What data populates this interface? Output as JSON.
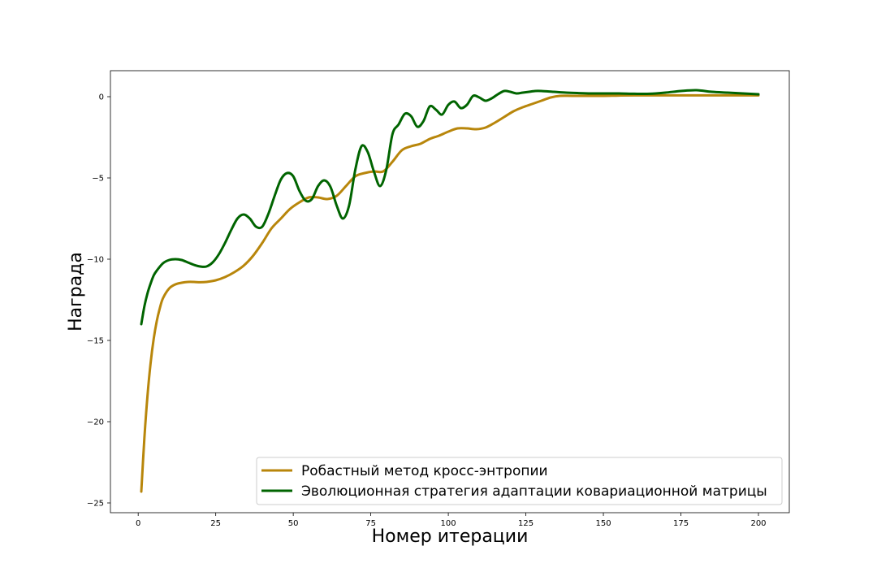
{
  "chart_data": {
    "type": "line",
    "title": "",
    "xlabel": "Номер итерации",
    "ylabel": "Награда",
    "xlim": [
      -8.95,
      209.95
    ],
    "ylim": [
      -25.6,
      1.6
    ],
    "xticks": [
      0,
      25,
      50,
      75,
      100,
      125,
      150,
      175,
      200
    ],
    "yticks": [
      0,
      -5,
      -10,
      -15,
      -20,
      -25
    ],
    "ytick_labels": [
      "0",
      "−5",
      "−10",
      "−15",
      "−20",
      "−25"
    ],
    "grid": false,
    "legend_position": "lower-right",
    "series": [
      {
        "name": "Робастный метод кросс-энтропии",
        "color": "#b8860b",
        "x": [
          1,
          2,
          3,
          4,
          5,
          6,
          7,
          8,
          10,
          12,
          14,
          16,
          18,
          20,
          22,
          25,
          28,
          31,
          34,
          37,
          40,
          43,
          46,
          49,
          52,
          55,
          58,
          61,
          64,
          67,
          70,
          73,
          76,
          79,
          82,
          85,
          88,
          91,
          94,
          97,
          100,
          103,
          106,
          109,
          112,
          115,
          118,
          121,
          124,
          127,
          130,
          133,
          136,
          140,
          145,
          150,
          155,
          160,
          170,
          180,
          190,
          200
        ],
        "values": [
          -24.3,
          -21.0,
          -18.4,
          -16.4,
          -14.9,
          -13.8,
          -13.0,
          -12.4,
          -11.8,
          -11.55,
          -11.45,
          -11.4,
          -11.4,
          -11.42,
          -11.4,
          -11.3,
          -11.1,
          -10.8,
          -10.4,
          -9.8,
          -9.0,
          -8.1,
          -7.5,
          -6.9,
          -6.5,
          -6.2,
          -6.2,
          -6.3,
          -6.1,
          -5.5,
          -4.9,
          -4.7,
          -4.6,
          -4.6,
          -4.0,
          -3.3,
          -3.05,
          -2.9,
          -2.6,
          -2.4,
          -2.15,
          -1.95,
          -1.95,
          -2.0,
          -1.9,
          -1.6,
          -1.25,
          -0.9,
          -0.65,
          -0.45,
          -0.25,
          -0.05,
          0.05,
          0.05,
          0.05,
          0.05,
          0.07,
          0.08,
          0.08,
          0.08,
          0.08,
          0.08
        ]
      },
      {
        "name": "Эволюционная стратегия адаптации ковариационной матрицы",
        "color": "#006400",
        "x": [
          1,
          2,
          3,
          4,
          5,
          6,
          8,
          10,
          12,
          14,
          16,
          18,
          20,
          22,
          24,
          26,
          28,
          30,
          32,
          34,
          36,
          38,
          40,
          42,
          44,
          46,
          48,
          50,
          52,
          54,
          56,
          58,
          60,
          62,
          64,
          66,
          68,
          70,
          72,
          74,
          76,
          78,
          80,
          82,
          84,
          86,
          88,
          90,
          92,
          94,
          96,
          98,
          100,
          102,
          104,
          106,
          108,
          110,
          112,
          114,
          116,
          118,
          120,
          122,
          124,
          126,
          128,
          130,
          134,
          138,
          142,
          146,
          150,
          155,
          160,
          165,
          170,
          175,
          180,
          185,
          190,
          195,
          200
        ],
        "values": [
          -14.0,
          -12.9,
          -12.1,
          -11.5,
          -11.0,
          -10.7,
          -10.25,
          -10.05,
          -10.0,
          -10.05,
          -10.2,
          -10.35,
          -10.45,
          -10.45,
          -10.2,
          -9.7,
          -9.0,
          -8.2,
          -7.5,
          -7.25,
          -7.5,
          -8.0,
          -8.0,
          -7.2,
          -6.1,
          -5.1,
          -4.7,
          -4.9,
          -5.8,
          -6.4,
          -6.3,
          -5.5,
          -5.15,
          -5.55,
          -6.7,
          -7.5,
          -6.7,
          -4.5,
          -3.05,
          -3.4,
          -4.6,
          -5.5,
          -4.5,
          -2.3,
          -1.7,
          -1.05,
          -1.2,
          -1.85,
          -1.5,
          -0.6,
          -0.8,
          -1.1,
          -0.5,
          -0.3,
          -0.7,
          -0.5,
          0.05,
          -0.05,
          -0.25,
          -0.1,
          0.15,
          0.35,
          0.3,
          0.2,
          0.25,
          0.3,
          0.35,
          0.35,
          0.3,
          0.25,
          0.22,
          0.2,
          0.2,
          0.2,
          0.18,
          0.18,
          0.25,
          0.35,
          0.4,
          0.3,
          0.25,
          0.2,
          0.15
        ]
      }
    ]
  }
}
